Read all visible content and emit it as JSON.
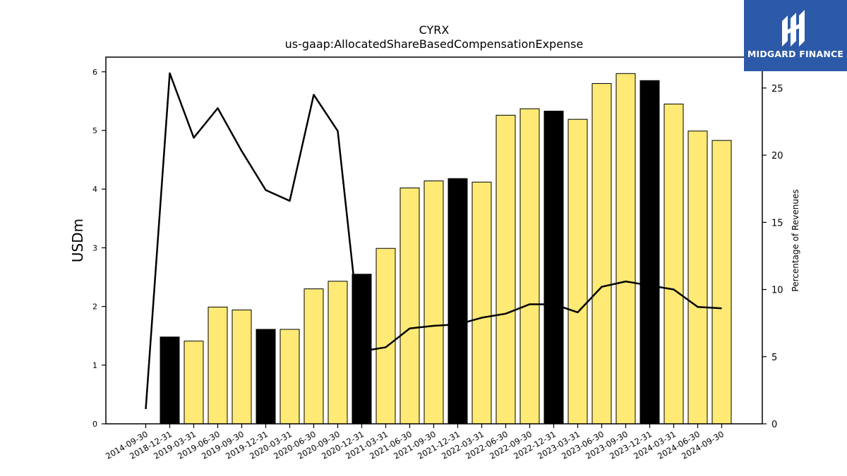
{
  "logo": {
    "text": "MIDGARD FINANCE",
    "background": "#2c5aa8"
  },
  "chart_data": {
    "type": "bar",
    "title": "CYRX",
    "subtitle": "us-gaap:AllocatedShareBasedCompensationExpense",
    "ylabel": "USDm",
    "y2label": "Percentage of Revenues",
    "ylim": [
      0,
      6.25
    ],
    "y2lim": [
      0,
      27.3
    ],
    "yticks": [
      0,
      1,
      2,
      3,
      4,
      5,
      6
    ],
    "y2ticks": [
      0,
      5,
      10,
      15,
      20,
      25
    ],
    "grid": false,
    "categories": [
      "2014-09-30",
      "2018-12-31",
      "2019-03-31",
      "2019-06-30",
      "2019-09-30",
      "2019-12-31",
      "2020-03-31",
      "2020-06-30",
      "2020-09-30",
      "2020-12-31",
      "2021-03-31",
      "2021-06-30",
      "2021-09-30",
      "2021-12-31",
      "2022-03-31",
      "2022-06-30",
      "2022-09-30",
      "2022-12-31",
      "2023-03-31",
      "2023-06-30",
      "2023-09-30",
      "2023-12-31",
      "2024-03-31",
      "2024-06-30",
      "2024-09-30"
    ],
    "series": [
      {
        "kind": "bar",
        "axis": "left",
        "values": [
          null,
          1.48,
          1.41,
          1.99,
          1.94,
          1.61,
          1.61,
          2.3,
          2.43,
          2.55,
          2.99,
          4.02,
          4.14,
          4.18,
          4.12,
          5.26,
          5.37,
          5.33,
          5.19,
          5.8,
          5.97,
          5.85,
          5.45,
          4.99,
          4.83
        ],
        "colors": {
          "quarter": "#ffea75",
          "year_end": "#000000"
        }
      },
      {
        "kind": "line",
        "axis": "right",
        "color": "#000000",
        "values": [
          1.1,
          26.1,
          21.3,
          23.5,
          20.3,
          17.4,
          16.6,
          24.5,
          21.8,
          5.4,
          5.7,
          7.1,
          7.3,
          7.4,
          7.9,
          8.2,
          8.9,
          8.9,
          8.3,
          10.2,
          10.6,
          10.3,
          10.0,
          8.7,
          8.6
        ]
      }
    ]
  }
}
